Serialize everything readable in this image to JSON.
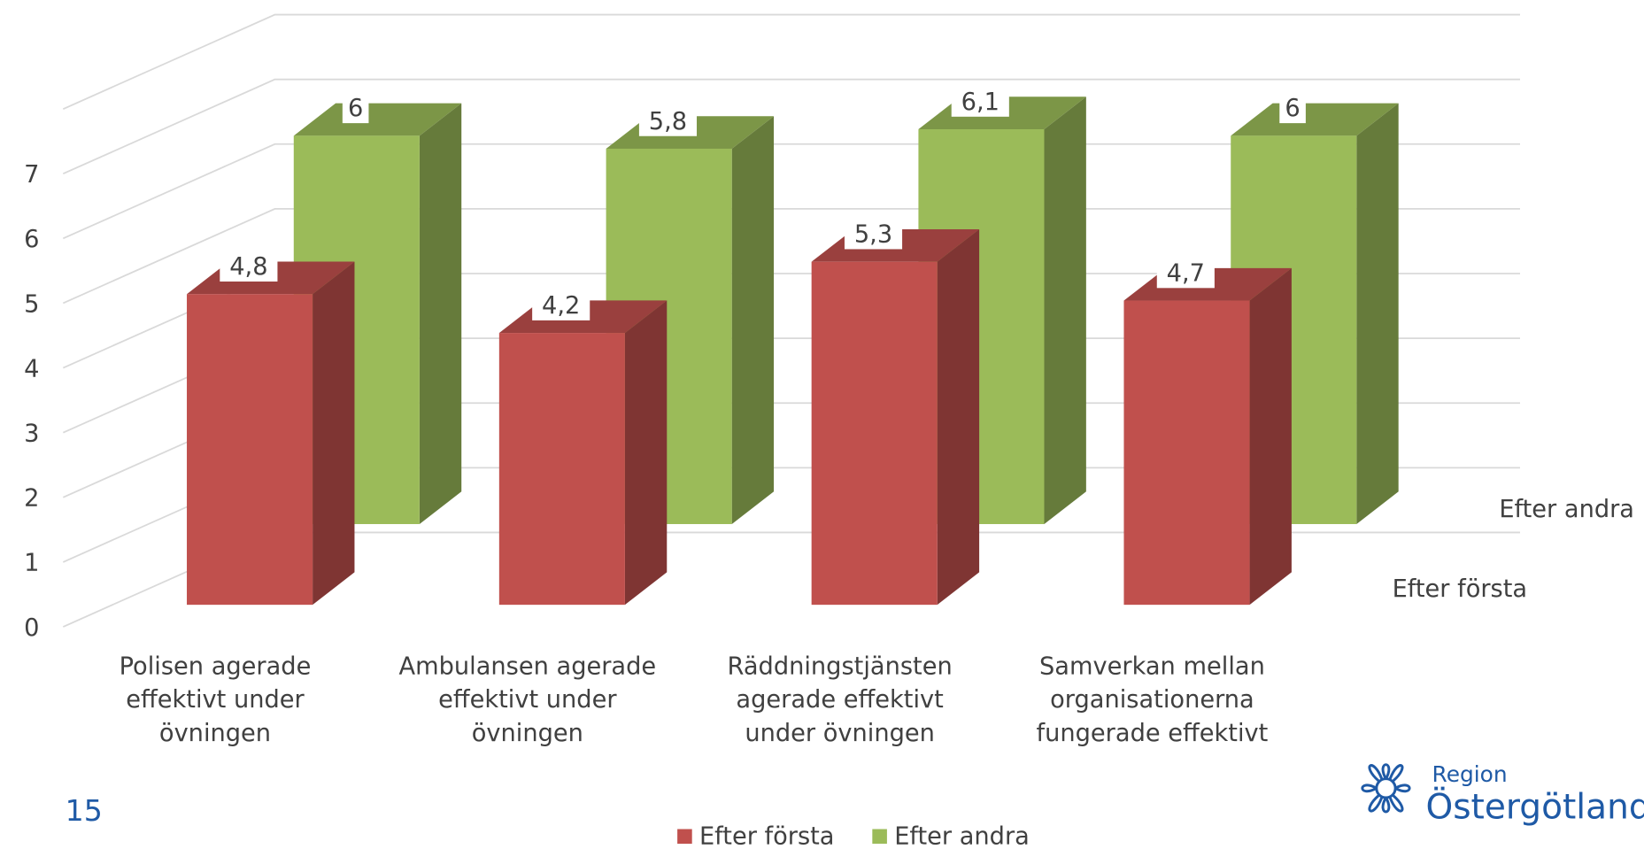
{
  "chart_data": {
    "type": "bar3d",
    "categories": [
      "Polisen agerade effektivt under övningen",
      "Ambulansen agerade effektivt under övningen",
      "Räddningstjänsten agerade effektivt under övningen",
      "Samverkan mellan organisationerna fungerade effektivt"
    ],
    "series": [
      {
        "name": "Efter första",
        "color": "#c0504d",
        "values": [
          4.8,
          4.2,
          5.3,
          4.7
        ],
        "value_labels": [
          "4,8",
          "4,2",
          "5,3",
          "4,7"
        ]
      },
      {
        "name": "Efter andra",
        "color": "#9bbb59",
        "values": [
          6,
          5.8,
          6.1,
          6
        ],
        "value_labels": [
          "6",
          "5,8",
          "6,1",
          "6"
        ]
      }
    ],
    "ylim": [
      0,
      8
    ],
    "yticks": [
      0,
      1,
      2,
      3,
      4,
      5,
      6,
      7
    ],
    "grid": true,
    "legend": "bottom"
  },
  "page_number": "15",
  "logo": {
    "line1": "Region",
    "line2": "Östergötland"
  }
}
